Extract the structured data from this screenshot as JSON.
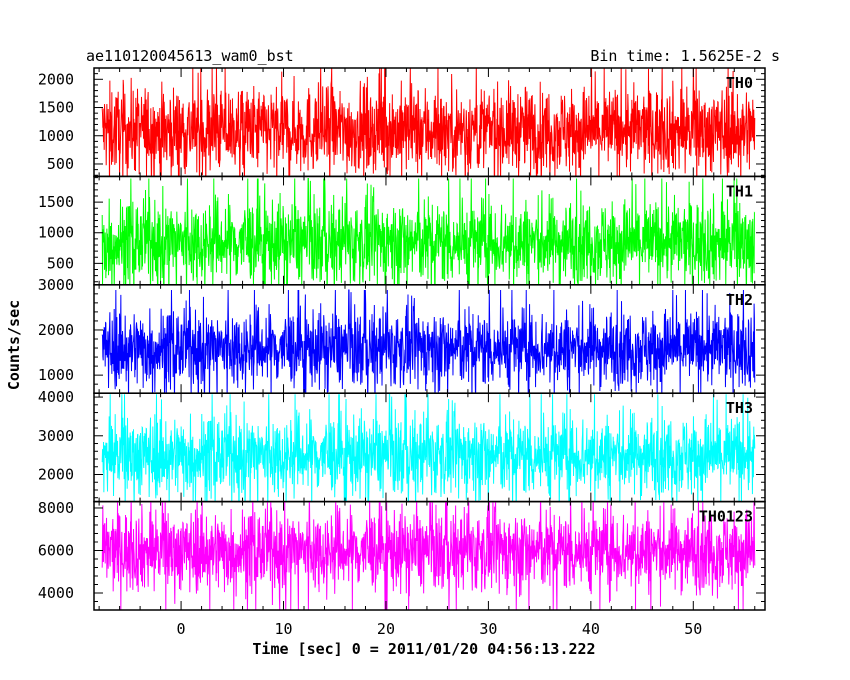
{
  "header": {
    "title": "ae110120045613_wam0_bst",
    "bin_time": "Bin time: 1.5625E-2 s"
  },
  "chart_data": {
    "type": "line",
    "xlabel": "Time [sec] 0 = 2011/01/20 04:56:13.222",
    "ylabel": "Counts/sec",
    "xlim": [
      -8.5,
      57
    ],
    "x_ticks": [
      0,
      10,
      20,
      30,
      40,
      50
    ],
    "x_tick_labels": [
      "0",
      "10",
      "20",
      "30",
      "40",
      "50"
    ],
    "x_data_range": [
      -7.7,
      56.0
    ],
    "bin_time_s": 0.015625,
    "grid": false,
    "panels": [
      {
        "name": "TH0",
        "color": "#ff0000",
        "ylim": [
          280,
          2200
        ],
        "y_ticks": [
          500,
          1000,
          1500,
          2000
        ],
        "y_tick_labels": [
          "500",
          "1000",
          "1500",
          "2000"
        ],
        "mean": 1100,
        "typical_low": 400,
        "typical_high": 2000
      },
      {
        "name": "TH1",
        "color": "#00ff00",
        "ylim": [
          150,
          1920
        ],
        "y_ticks": [
          500,
          1000,
          1500
        ],
        "y_tick_labels": [
          "500",
          "1000",
          "1500"
        ],
        "mean": 850,
        "typical_low": 300,
        "typical_high": 1750
      },
      {
        "name": "TH2",
        "color": "#0000ff",
        "ylim": [
          600,
          3000
        ],
        "y_ticks": [
          1000,
          2000,
          3000
        ],
        "y_tick_labels": [
          "1000",
          "2000",
          "3000"
        ],
        "mean": 1600,
        "typical_low": 900,
        "typical_high": 2700
      },
      {
        "name": "TH3",
        "color": "#00ffff",
        "ylim": [
          1300,
          4100
        ],
        "y_ticks": [
          2000,
          3000,
          4000
        ],
        "y_tick_labels": [
          "2000",
          "3000",
          "4000"
        ],
        "mean": 2500,
        "typical_low": 1600,
        "typical_high": 3800
      },
      {
        "name": "TH0123",
        "color": "#ff00ff",
        "ylim": [
          3200,
          8300
        ],
        "y_ticks": [
          4000,
          6000,
          8000
        ],
        "y_tick_labels": [
          "4000",
          "6000",
          "8000"
        ],
        "mean": 6000,
        "typical_low": 4000,
        "typical_high": 8000
      }
    ]
  }
}
